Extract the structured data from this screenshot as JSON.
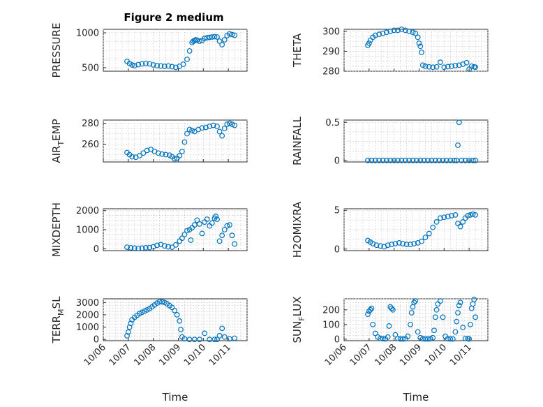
{
  "chart_data": [
    {
      "type": "scatter",
      "name_key": "pressure",
      "title": "Figure 2 medium",
      "ylabel": "PRESSURE",
      "ylabel_sub": "",
      "ylim": [
        450,
        1050
      ],
      "yticks": [
        500,
        1000
      ],
      "x": [
        0,
        0.1,
        0.2,
        0.3,
        0.45,
        0.6,
        0.75,
        0.9,
        1.05,
        1.2,
        1.35,
        1.5,
        1.65,
        1.8,
        1.95,
        2.1,
        2.25,
        2.4,
        2.5,
        2.6,
        2.65,
        2.7,
        2.75,
        2.8,
        2.9,
        3.0,
        3.1,
        3.2,
        3.3,
        3.4,
        3.5,
        3.6,
        3.7,
        3.8,
        3.9,
        4.0,
        4.1,
        4.2,
        4.3
      ],
      "y": [
        590,
        560,
        540,
        530,
        545,
        555,
        560,
        555,
        540,
        530,
        525,
        520,
        525,
        515,
        505,
        520,
        550,
        620,
        740,
        860,
        880,
        890,
        900,
        895,
        880,
        890,
        920,
        930,
        935,
        940,
        945,
        940,
        880,
        830,
        900,
        960,
        985,
        975,
        965
      ]
    },
    {
      "type": "scatter",
      "name_key": "theta",
      "ylabel": "THETA",
      "ylabel_sub": "",
      "ylim": [
        280,
        301
      ],
      "yticks": [
        280,
        290,
        300
      ],
      "x": [
        0,
        0.05,
        0.1,
        0.2,
        0.3,
        0.45,
        0.6,
        0.75,
        0.9,
        1.05,
        1.2,
        1.35,
        1.5,
        1.65,
        1.8,
        1.9,
        2.0,
        2.05,
        2.1,
        2.15,
        2.2,
        2.3,
        2.45,
        2.6,
        2.75,
        2.9,
        3.05,
        3.2,
        3.35,
        3.5,
        3.65,
        3.8,
        3.95,
        4.05,
        4.15,
        4.25,
        4.3
      ],
      "y": [
        293,
        294,
        295.5,
        297,
        298,
        298.5,
        299,
        299.5,
        300,
        300.5,
        300.5,
        301,
        300.5,
        300,
        299.5,
        299,
        297,
        294,
        292.5,
        289.5,
        283,
        282.5,
        282.2,
        282,
        282.2,
        284.5,
        282,
        282.3,
        282.5,
        282.8,
        283,
        283.5,
        284.3,
        281,
        282.5,
        282.2,
        282
      ]
    },
    {
      "type": "scatter",
      "name_key": "air-temp",
      "ylabel": "AIR",
      "ylabel_sub": "T",
      "ylabel_tail": "EMP",
      "ylim": [
        243,
        283
      ],
      "yticks": [
        260,
        280
      ],
      "x": [
        0,
        0.1,
        0.2,
        0.35,
        0.5,
        0.65,
        0.8,
        0.95,
        1.1,
        1.25,
        1.4,
        1.55,
        1.7,
        1.8,
        1.9,
        2.0,
        2.1,
        2.2,
        2.3,
        2.4,
        2.5,
        2.6,
        2.7,
        2.85,
        3.0,
        3.15,
        3.3,
        3.45,
        3.6,
        3.7,
        3.8,
        3.9,
        4.0,
        4.1,
        4.2,
        4.3
      ],
      "y": [
        252,
        250,
        248,
        247.5,
        249,
        251.5,
        254,
        255,
        253,
        251.5,
        250.5,
        250,
        249.5,
        248,
        246,
        246.5,
        249,
        253,
        262,
        270,
        274,
        273,
        272,
        274,
        275.5,
        276,
        277,
        278,
        277,
        272,
        268,
        275,
        279,
        280,
        279,
        278
      ]
    },
    {
      "type": "scatter",
      "name_key": "rainfall",
      "ylabel": "RAINFALL",
      "ylabel_sub": "",
      "ylim": [
        -0.02,
        0.53
      ],
      "yticks": [
        0,
        0.5
      ],
      "x": [
        0,
        0.15,
        0.3,
        0.45,
        0.6,
        0.75,
        0.9,
        1.05,
        1.2,
        1.35,
        1.5,
        1.65,
        1.8,
        1.95,
        2.1,
        2.25,
        2.4,
        2.55,
        2.7,
        2.85,
        3.0,
        3.15,
        3.3,
        3.45,
        3.55,
        3.6,
        3.65,
        3.75,
        3.9,
        4.05,
        4.2,
        4.3
      ],
      "y": [
        0,
        0,
        0,
        0,
        0,
        0,
        0,
        0,
        0,
        0,
        0,
        0,
        0,
        0,
        0,
        0,
        0,
        0,
        0,
        0,
        0,
        0,
        0,
        0,
        0,
        0.2,
        0.5,
        0,
        0,
        0,
        0,
        0
      ]
    },
    {
      "type": "scatter",
      "name_key": "mixdepth",
      "ylabel": "MIXDEPTH",
      "ylabel_sub": "",
      "ylim": [
        -100,
        2100
      ],
      "yticks": [
        0,
        1000,
        2000
      ],
      "x": [
        0,
        0.15,
        0.3,
        0.45,
        0.6,
        0.75,
        0.9,
        1.05,
        1.2,
        1.35,
        1.5,
        1.65,
        1.8,
        1.95,
        2.1,
        2.2,
        2.3,
        2.4,
        2.5,
        2.55,
        2.6,
        2.7,
        2.8,
        2.9,
        3.0,
        3.1,
        3.2,
        3.3,
        3.4,
        3.5,
        3.55,
        3.6,
        3.7,
        3.8,
        3.9,
        4.0,
        4.1,
        4.2,
        4.3
      ],
      "y": [
        80,
        50,
        30,
        20,
        30,
        50,
        60,
        100,
        180,
        220,
        150,
        100,
        80,
        200,
        400,
        550,
        750,
        950,
        1000,
        450,
        1100,
        1250,
        1500,
        1300,
        800,
        1400,
        1550,
        1200,
        1350,
        1600,
        1700,
        1550,
        400,
        700,
        1000,
        1200,
        1250,
        700,
        250
      ]
    },
    {
      "type": "scatter",
      "name_key": "h2omixra",
      "ylabel": "H2OMIXRA",
      "ylabel_sub": "",
      "ylim": [
        -0.2,
        5.2
      ],
      "yticks": [
        0,
        5
      ],
      "x": [
        0,
        0.1,
        0.2,
        0.35,
        0.5,
        0.65,
        0.8,
        0.95,
        1.1,
        1.25,
        1.4,
        1.55,
        1.7,
        1.85,
        2.0,
        2.15,
        2.3,
        2.45,
        2.6,
        2.75,
        2.9,
        3.05,
        3.2,
        3.35,
        3.5,
        3.6,
        3.7,
        3.8,
        3.9,
        4.0,
        4.1,
        4.2,
        4.3
      ],
      "y": [
        1.1,
        0.9,
        0.7,
        0.5,
        0.4,
        0.3,
        0.5,
        0.6,
        0.7,
        0.8,
        0.7,
        0.6,
        0.6,
        0.7,
        0.8,
        1.0,
        1.5,
        2.0,
        2.8,
        3.5,
        4.0,
        4.1,
        4.2,
        4.3,
        4.4,
        3.3,
        2.9,
        3.5,
        4.0,
        4.3,
        4.4,
        4.5,
        4.4
      ]
    },
    {
      "type": "scatter",
      "name_key": "terr-msl",
      "ylabel": "TERR",
      "ylabel_sub": "M",
      "ylabel_tail": "SL",
      "ylim": [
        -100,
        3300
      ],
      "yticks": [
        0,
        1000,
        2000,
        3000
      ],
      "x": [
        0,
        0.05,
        0.1,
        0.15,
        0.2,
        0.3,
        0.4,
        0.5,
        0.6,
        0.7,
        0.8,
        0.9,
        1.0,
        1.1,
        1.2,
        1.3,
        1.4,
        1.5,
        1.6,
        1.7,
        1.8,
        1.9,
        2.0,
        2.1,
        2.15,
        2.2,
        2.3,
        2.5,
        2.7,
        2.9,
        3.1,
        3.3,
        3.5,
        3.6,
        3.7,
        3.8,
        3.9,
        4.1,
        4.3
      ],
      "y": [
        300,
        600,
        1000,
        1300,
        1600,
        1800,
        1950,
        2100,
        2200,
        2300,
        2400,
        2500,
        2650,
        2800,
        2950,
        3050,
        3050,
        3000,
        2900,
        2750,
        2600,
        2350,
        2000,
        1500,
        800,
        200,
        50,
        0,
        0,
        0,
        500,
        0,
        0,
        0,
        300,
        900,
        200,
        50,
        100
      ]
    },
    {
      "type": "scatter",
      "name_key": "sun-flux",
      "ylabel": "SUN",
      "ylabel_sub": "F",
      "ylabel_tail": "LUX",
      "ylim": [
        -10,
        275
      ],
      "yticks": [
        0,
        100,
        200
      ],
      "x": [
        0,
        0.05,
        0.1,
        0.15,
        0.2,
        0.3,
        0.4,
        0.5,
        0.6,
        0.7,
        0.8,
        0.85,
        0.9,
        0.95,
        1.0,
        1.1,
        1.2,
        1.3,
        1.4,
        1.5,
        1.6,
        1.7,
        1.75,
        1.8,
        1.85,
        1.9,
        2.0,
        2.1,
        2.2,
        2.3,
        2.4,
        2.5,
        2.6,
        2.65,
        2.7,
        2.75,
        2.8,
        2.9,
        3.0,
        3.1,
        3.2,
        3.3,
        3.4,
        3.5,
        3.55,
        3.6,
        3.65,
        3.7,
        3.8,
        3.9,
        4.0,
        4.05,
        4.1,
        4.15,
        4.2,
        4.25,
        4.3
      ],
      "y": [
        170,
        190,
        200,
        210,
        100,
        40,
        15,
        5,
        3,
        2,
        15,
        90,
        220,
        210,
        200,
        30,
        5,
        2,
        2,
        3,
        20,
        100,
        180,
        220,
        250,
        260,
        50,
        10,
        3,
        2,
        2,
        3,
        10,
        60,
        150,
        200,
        240,
        260,
        150,
        20,
        3,
        2,
        2,
        50,
        120,
        180,
        230,
        250,
        80,
        5,
        3,
        2,
        100,
        210,
        240,
        270,
        150
      ]
    }
  ],
  "x_axis": {
    "label": "Time",
    "xlim": [
      -0.95,
      4.8
    ],
    "ticks": [
      -0.95,
      0.05,
      1.05,
      2.05,
      3.05,
      4.05
    ],
    "tick_labels": [
      "10/06",
      "10/07",
      "10/08",
      "10/09",
      "10/10",
      "10/11"
    ]
  },
  "grid": "on",
  "colors": {
    "marker": "#0072BD",
    "axes": "#262626",
    "grid": "#c8c8c8"
  }
}
